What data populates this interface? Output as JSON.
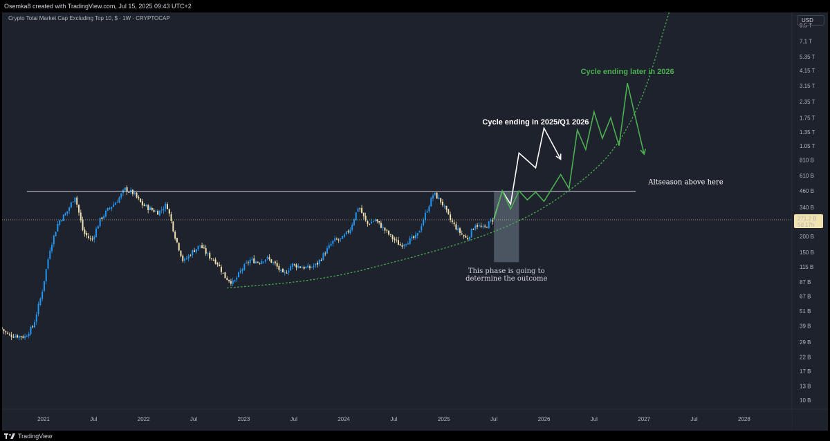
{
  "header": {
    "attribution": "Osemka8 created with TradingView.com, Jul 15, 2025 09:43 UTC+2"
  },
  "chart_header": {
    "symbol_title": "Crypto Total Market Cap Excluding Top 10, $ · 1W · CRYPTOCAP",
    "currency_label": "USD"
  },
  "footer": {
    "brand": "TradingView",
    "logo_icon": "tradingview-logo-icon"
  },
  "colors": {
    "background": "#1e222d",
    "up_candle": "#2196f3",
    "down_candle": "#f2e2b0",
    "bull_path": "#ffffff",
    "green_path": "#4caf50",
    "dotted_curve": "#4caf50",
    "resistance_line": "#d1d4dc",
    "price_badge": "#f2e2b0",
    "highlight_box": "#5d6b78"
  },
  "chart_data": {
    "type": "candlestick",
    "title": "Crypto Total Market Cap Excluding Top 10, $ · 1W · CRYPTOCAP",
    "unit": "USD",
    "y_scale": "log",
    "y_range": [
      "8.5B",
      "12T"
    ],
    "x_range": [
      "2020-08",
      "2028-06"
    ],
    "grid": false,
    "y_ticks": [
      {
        "value": 9500000000000.0,
        "label": "9.5 T"
      },
      {
        "value": 7100000000000.0,
        "label": "7.1 T"
      },
      {
        "value": 5350000000000.0,
        "label": "5.35 T"
      },
      {
        "value": 4150000000000.0,
        "label": "4.15 T"
      },
      {
        "value": 3150000000000.0,
        "label": "3.15 T"
      },
      {
        "value": 2350000000000.0,
        "label": "2.35 T"
      },
      {
        "value": 1750000000000.0,
        "label": "1.75 T"
      },
      {
        "value": 1350000000000.0,
        "label": "1.35 T"
      },
      {
        "value": 1050000000000.0,
        "label": "1.05 T"
      },
      {
        "value": 810000000000.0,
        "label": "810 B"
      },
      {
        "value": 610000000000.0,
        "label": "610 B"
      },
      {
        "value": 460000000000.0,
        "label": "460 B"
      },
      {
        "value": 340000000000.0,
        "label": "340 B"
      },
      {
        "value": 200000000000.0,
        "label": "200 B"
      },
      {
        "value": 150000000000.0,
        "label": "150 B"
      },
      {
        "value": 115000000000.0,
        "label": "115 B"
      },
      {
        "value": 87000000000.0,
        "label": "87 B"
      },
      {
        "value": 67000000000.0,
        "label": "67 B"
      },
      {
        "value": 51000000000.0,
        "label": "51 B"
      },
      {
        "value": 39000000000.0,
        "label": "39 B"
      },
      {
        "value": 29000000000.0,
        "label": "29 B"
      },
      {
        "value": 22000000000.0,
        "label": "22 B"
      },
      {
        "value": 17000000000.0,
        "label": "17 B"
      },
      {
        "value": 13000000000.0,
        "label": "13 B"
      },
      {
        "value": 10000000000.0,
        "label": "10 B"
      }
    ],
    "x_ticks": [
      {
        "date": "2021-01",
        "label": "2021"
      },
      {
        "date": "2021-07",
        "label": "Jul"
      },
      {
        "date": "2022-01",
        "label": "2022"
      },
      {
        "date": "2022-07",
        "label": "Jul"
      },
      {
        "date": "2023-01",
        "label": "2023"
      },
      {
        "date": "2023-07",
        "label": "Jul"
      },
      {
        "date": "2024-01",
        "label": "2024"
      },
      {
        "date": "2024-07",
        "label": "Jul"
      },
      {
        "date": "2025-01",
        "label": "2025"
      },
      {
        "date": "2025-07",
        "label": "Jul"
      },
      {
        "date": "2026-01",
        "label": "2026"
      },
      {
        "date": "2026-07",
        "label": "Jul"
      },
      {
        "date": "2027-01",
        "label": "2027"
      },
      {
        "date": "2027-07",
        "label": "Jul"
      },
      {
        "date": "2028-01",
        "label": "2028"
      }
    ],
    "price_path": [
      [
        "2020-08",
        38000000000.0
      ],
      [
        "2020-09",
        33000000000.0
      ],
      [
        "2020-11",
        32000000000.0
      ],
      [
        "2020-12",
        39000000000.0
      ],
      [
        "2021-01",
        70000000000.0
      ],
      [
        "2021-02",
        160000000000.0
      ],
      [
        "2021-03",
        260000000000.0
      ],
      [
        "2021-04",
        310000000000.0
      ],
      [
        "2021-05",
        420000000000.0
      ],
      [
        "2021-06",
        215000000000.0
      ],
      [
        "2021-07",
        185000000000.0
      ],
      [
        "2021-08",
        270000000000.0
      ],
      [
        "2021-09",
        330000000000.0
      ],
      [
        "2021-10",
        380000000000.0
      ],
      [
        "2021-11",
        475000000000.0
      ],
      [
        "2021-12",
        440000000000.0
      ],
      [
        "2022-01",
        360000000000.0
      ],
      [
        "2022-02",
        330000000000.0
      ],
      [
        "2022-03",
        310000000000.0
      ],
      [
        "2022-04",
        360000000000.0
      ],
      [
        "2022-05",
        200000000000.0
      ],
      [
        "2022-06",
        125000000000.0
      ],
      [
        "2022-07",
        150000000000.0
      ],
      [
        "2022-08",
        170000000000.0
      ],
      [
        "2022-09",
        140000000000.0
      ],
      [
        "2022-10",
        125000000000.0
      ],
      [
        "2022-11",
        95000000000.0
      ],
      [
        "2022-12",
        85000000000.0
      ],
      [
        "2023-01",
        110000000000.0
      ],
      [
        "2023-02",
        130000000000.0
      ],
      [
        "2023-03",
        125000000000.0
      ],
      [
        "2023-04",
        135000000000.0
      ],
      [
        "2023-05",
        120000000000.0
      ],
      [
        "2023-06",
        98000000000.0
      ],
      [
        "2023-07",
        120000000000.0
      ],
      [
        "2023-08",
        115000000000.0
      ],
      [
        "2023-09",
        112000000000.0
      ],
      [
        "2023-10",
        120000000000.0
      ],
      [
        "2023-11",
        150000000000.0
      ],
      [
        "2023-12",
        185000000000.0
      ],
      [
        "2024-01",
        190000000000.0
      ],
      [
        "2024-02",
        230000000000.0
      ],
      [
        "2024-03",
        350000000000.0
      ],
      [
        "2024-04",
        250000000000.0
      ],
      [
        "2024-05",
        270000000000.0
      ],
      [
        "2024-06",
        230000000000.0
      ],
      [
        "2024-07",
        195000000000.0
      ],
      [
        "2024-08",
        170000000000.0
      ],
      [
        "2024-09",
        185000000000.0
      ],
      [
        "2024-10",
        200000000000.0
      ],
      [
        "2024-11",
        300000000000.0
      ],
      [
        "2024-12",
        440000000000.0
      ],
      [
        "2025-01",
        370000000000.0
      ],
      [
        "2025-02",
        270000000000.0
      ],
      [
        "2025-03",
        220000000000.0
      ],
      [
        "2025-04",
        190000000000.0
      ],
      [
        "2025-05",
        250000000000.0
      ],
      [
        "2025-06",
        230000000000.0
      ],
      [
        "2025-07",
        271000000000.0
      ]
    ],
    "current_price": {
      "value": 271200000000.0,
      "label": "271.2 B",
      "countdown": "5d 17h"
    },
    "resistance": {
      "value": 455000000000.0,
      "from": "2020-11",
      "to": "2026-12",
      "label": "Altseason above here"
    },
    "support_curve": [
      [
        "2022-11",
        78000000000.0
      ],
      [
        "2023-07",
        86000000000.0
      ],
      [
        "2024-01",
        99000000000.0
      ],
      [
        "2024-07",
        125000000000.0
      ],
      [
        "2025-01",
        160000000000.0
      ],
      [
        "2025-07",
        215000000000.0
      ],
      [
        "2026-01",
        330000000000.0
      ],
      [
        "2026-07",
        650000000000.0
      ],
      [
        "2026-10",
        1100000000000.0
      ],
      [
        "2027-01",
        2600000000000.0
      ],
      [
        "2027-04",
        12000000000000.0
      ]
    ],
    "highlight_zone": {
      "from": "2025-07",
      "to": "2025-10",
      "y_from": 125000000000.0,
      "y_to": 455000000000.0,
      "label_lines": [
        "This phase is going to",
        "determine the outcome"
      ]
    },
    "scenarios": [
      {
        "name": "Cycle ending in 2025/Q1 2026",
        "color": "#ffffff",
        "points": [
          [
            "2025-07",
            275000000000.0
          ],
          [
            "2025-08",
            460000000000.0
          ],
          [
            "2025-09",
            360000000000.0
          ],
          [
            "2025-10",
            920000000000.0
          ],
          [
            "2025-12",
            700000000000.0
          ],
          [
            "2026-01",
            1450000000000.0
          ],
          [
            "2026-03",
            820000000000.0
          ]
        ]
      },
      {
        "name": "Cycle ending later in 2026",
        "color": "#4caf50",
        "points": [
          [
            "2025-07",
            270000000000.0
          ],
          [
            "2025-08",
            460000000000.0
          ],
          [
            "2025-09",
            330000000000.0
          ],
          [
            "2025-10",
            460000000000.0
          ],
          [
            "2025-11",
            390000000000.0
          ],
          [
            "2025-12",
            450000000000.0
          ],
          [
            "2026-01",
            380000000000.0
          ],
          [
            "2026-03",
            620000000000.0
          ],
          [
            "2026-04",
            480000000000.0
          ],
          [
            "2026-05",
            1400000000000.0
          ],
          [
            "2026-06",
            980000000000.0
          ],
          [
            "2026-07",
            1950000000000.0
          ],
          [
            "2026-08",
            1200000000000.0
          ],
          [
            "2026-09",
            1750000000000.0
          ],
          [
            "2026-10",
            1050000000000.0
          ],
          [
            "2026-11",
            3300000000000.0
          ],
          [
            "2027-01",
            900000000000.0
          ]
        ]
      }
    ],
    "annotations": [
      {
        "text": "Cycle ending in 2025/Q1 2026",
        "date": "2025-12",
        "value": 1550000000000.0,
        "color": "#ffffff",
        "style": "bold"
      },
      {
        "text": "Cycle ending later in 2026",
        "date": "2026-11",
        "value": 3900000000000.0,
        "color": "#4caf50",
        "style": "bold"
      },
      {
        "text": "Altseason above here",
        "date": "2027-06",
        "value": 520000000000.0,
        "color": "#ffffff",
        "style": "serif"
      }
    ]
  }
}
